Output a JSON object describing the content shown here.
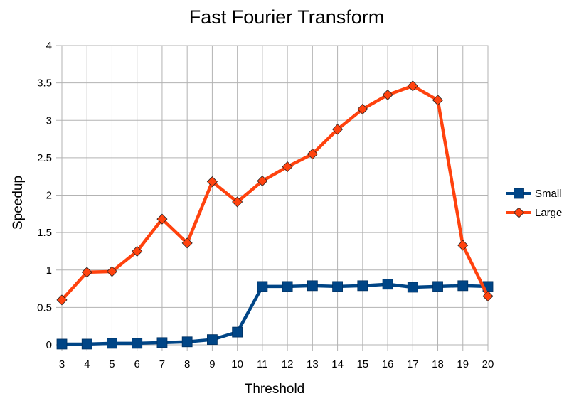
{
  "chart_data": {
    "type": "line",
    "title": "Fast Fourier Transform",
    "xlabel": "Threshold",
    "ylabel": "Speedup",
    "categories": [
      "3",
      "4",
      "5",
      "6",
      "7",
      "8",
      "9",
      "10",
      "11",
      "12",
      "13",
      "14",
      "15",
      "16",
      "17",
      "18",
      "19",
      "20"
    ],
    "ylim": [
      0,
      4
    ],
    "yticks": [
      "0",
      "0.5",
      "1",
      "1.5",
      "2",
      "2.5",
      "3",
      "3.5",
      "4"
    ],
    "grid": true,
    "legend_position": "right",
    "series": [
      {
        "name": "Small",
        "color": "#004586",
        "marker": "square",
        "values": [
          0.01,
          0.01,
          0.02,
          0.02,
          0.03,
          0.04,
          0.07,
          0.17,
          0.78,
          0.78,
          0.79,
          0.78,
          0.79,
          0.81,
          0.77,
          0.78,
          0.79,
          0.78
        ]
      },
      {
        "name": "Large",
        "color": "#ff420e",
        "marker": "diamond",
        "values": [
          0.6,
          0.97,
          0.98,
          1.25,
          1.68,
          1.36,
          2.18,
          1.91,
          2.19,
          2.38,
          2.55,
          2.88,
          3.15,
          3.34,
          3.46,
          3.27,
          1.33,
          0.65
        ]
      }
    ]
  }
}
